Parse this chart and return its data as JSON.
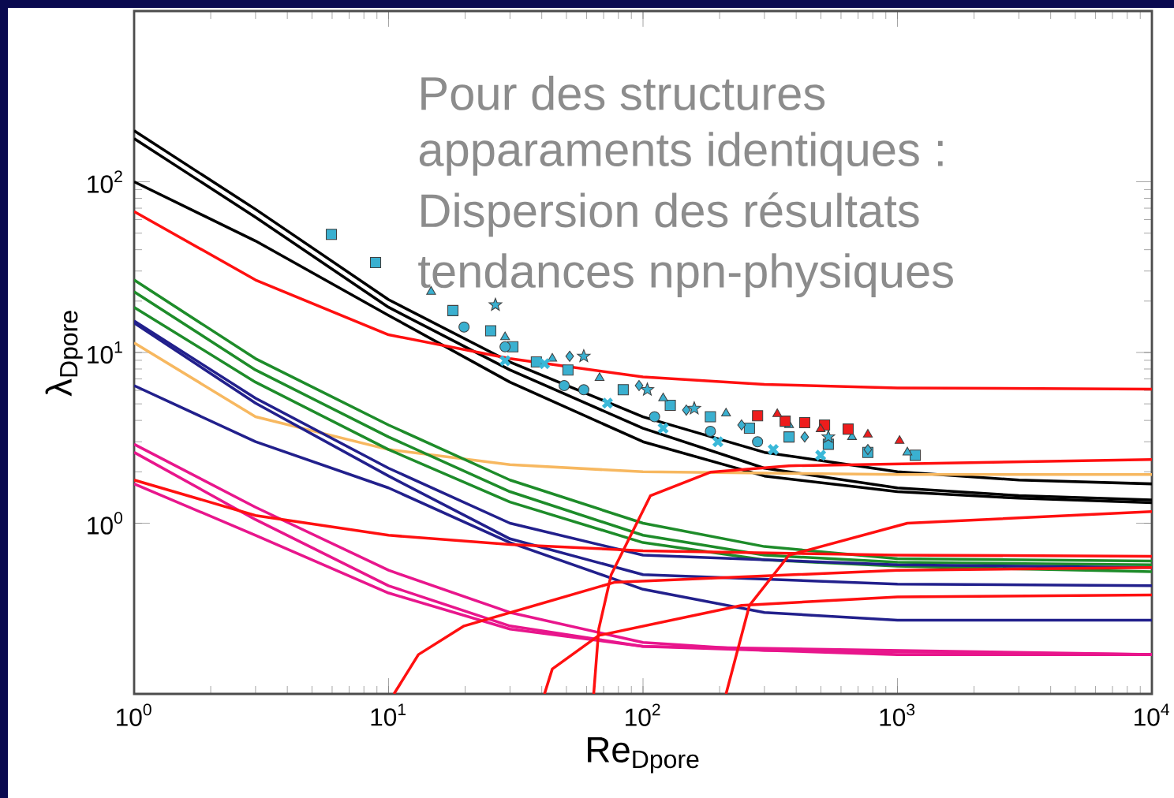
{
  "chart_data": {
    "type": "line",
    "log": "xy",
    "marker": "none",
    "xlabel": "Re$_{Dpore}$",
    "ylabel": "λ$_{Dpore}$",
    "xlim": [
      1,
      10000
    ],
    "ylim": [
      0.1,
      1000
    ],
    "xticks": [
      {
        "value": 1,
        "label": "10$^{0}$"
      },
      {
        "value": 10,
        "label": "10$^{1}$"
      },
      {
        "value": 100,
        "label": "10$^{2}$"
      },
      {
        "value": 1000,
        "label": "10$^{3}$"
      },
      {
        "value": 10000,
        "label": "10$^{4}$"
      }
    ],
    "yticks": [
      {
        "value": 1,
        "label": "10$^{0}$"
      },
      {
        "value": 10,
        "label": "10$^{1}$"
      },
      {
        "value": 100,
        "label": "10$^{2}$"
      }
    ],
    "annotations": [
      "Pour des structures",
      "apparaments identiques :",
      "Dispersion des résultats",
      "tendances npn-physiques"
    ],
    "series": [
      {
        "color": "#000000",
        "x": [
          1,
          3,
          10,
          30,
          100,
          300,
          1000,
          3000,
          10000
        ],
        "values": [
          199,
          69,
          20.4,
          8.8,
          4.2,
          2.6,
          2.0,
          1.79,
          1.7
        ]
      },
      {
        "color": "#000000",
        "x": [
          1,
          3,
          10,
          30,
          100,
          300,
          1000,
          3000,
          10000
        ],
        "values": [
          179,
          62,
          18.4,
          7.9,
          3.6,
          2.1,
          1.61,
          1.45,
          1.37
        ]
      },
      {
        "color": "#000000",
        "x": [
          1,
          3,
          10,
          30,
          100,
          300,
          1000,
          3000,
          10000
        ],
        "values": [
          100,
          45,
          16.5,
          6.7,
          3.0,
          1.89,
          1.53,
          1.4,
          1.32
        ]
      },
      {
        "color": "#ff1010",
        "x": [
          1,
          3,
          10,
          30,
          100,
          300,
          1000,
          10000
        ],
        "values": [
          67,
          26.6,
          12.7,
          9.2,
          7.2,
          6.5,
          6.2,
          6.1
        ]
      },
      {
        "color": "#f7b860",
        "x": [
          1,
          3,
          10,
          30,
          100,
          1000,
          10000
        ],
        "values": [
          11.4,
          4.2,
          2.7,
          2.2,
          2.0,
          1.93,
          1.93
        ]
      },
      {
        "color": "#1e8c2a",
        "x": [
          1,
          3,
          10,
          30,
          100,
          300,
          1000,
          10000
        ],
        "values": [
          26.6,
          9.2,
          3.76,
          1.79,
          1.0,
          0.73,
          0.62,
          0.6
        ]
      },
      {
        "color": "#1e8c2a",
        "x": [
          1,
          3,
          10,
          30,
          100,
          300,
          1000,
          10000
        ],
        "values": [
          22.7,
          7.9,
          3.2,
          1.53,
          0.85,
          0.65,
          0.59,
          0.57
        ]
      },
      {
        "color": "#1e8c2a",
        "x": [
          1,
          3,
          10,
          30,
          100,
          300,
          1000,
          10000
        ],
        "values": [
          18.4,
          6.7,
          2.7,
          1.33,
          0.77,
          0.61,
          0.56,
          0.52
        ]
      },
      {
        "color": "#22208c",
        "x": [
          1,
          3,
          10,
          30,
          100,
          1000,
          10000
        ],
        "values": [
          15.3,
          5.4,
          2.1,
          1.0,
          0.65,
          0.57,
          0.55
        ]
      },
      {
        "color": "#22208c",
        "x": [
          1,
          3,
          10,
          30,
          100,
          1000,
          10000
        ],
        "values": [
          14.9,
          5.05,
          1.89,
          0.81,
          0.5,
          0.44,
          0.43
        ]
      },
      {
        "color": "#22208c",
        "x": [
          1,
          3,
          10,
          30,
          100,
          300,
          1000,
          10000
        ],
        "values": [
          6.4,
          3.0,
          1.61,
          0.77,
          0.41,
          0.3,
          0.27,
          0.27
        ]
      },
      {
        "color": "#e8168c",
        "x": [
          1,
          3,
          10,
          30,
          100,
          300,
          1000,
          10000
        ],
        "values": [
          2.9,
          1.24,
          0.53,
          0.3,
          0.2,
          0.18,
          0.17,
          0.17
        ]
      },
      {
        "color": "#e8168c",
        "x": [
          1,
          3,
          10,
          30,
          100,
          300,
          10000
        ],
        "values": [
          2.6,
          1.05,
          0.43,
          0.25,
          0.19,
          0.18,
          0.17
        ]
      },
      {
        "color": "#e8168c",
        "x": [
          1,
          3,
          10,
          30,
          100,
          10000
        ],
        "values": [
          1.7,
          0.85,
          0.39,
          0.24,
          0.19,
          0.17
        ]
      },
      {
        "color": "#ff1010",
        "x": [
          1,
          3,
          10,
          30,
          100,
          1000,
          10000
        ],
        "values": [
          1.79,
          1.11,
          0.85,
          0.75,
          0.69,
          0.65,
          0.64
        ]
      },
      {
        "color": "#ff1010",
        "x": [
          10.5,
          13.1,
          19.8,
          77,
          1000,
          10000
        ],
        "values": [
          0.1,
          0.17,
          0.25,
          0.45,
          0.53,
          0.55
        ]
      },
      {
        "color": "#ff1010",
        "x": [
          41,
          44,
          67,
          244,
          1000,
          10000
        ],
        "values": [
          0.1,
          0.14,
          0.22,
          0.33,
          0.37,
          0.38
        ]
      },
      {
        "color": "#ff1010",
        "x": [
          64,
          67,
          75,
          107,
          184,
          375,
          10000
        ],
        "values": [
          0.1,
          0.24,
          0.5,
          1.45,
          1.99,
          2.17,
          2.36
        ]
      },
      {
        "color": "#ff1010",
        "x": [
          212,
          262,
          375,
          1094,
          10000
        ],
        "values": [
          0.1,
          0.33,
          0.65,
          1.0,
          1.17
        ]
      },
      {
        "type": "scatter",
        "marker": "square",
        "color": "#3ab0d0",
        "x": [
          5.96,
          8.89,
          17.9,
          25.2,
          30.8,
          38.1,
          50.7,
          83.6,
          128,
          184,
          262,
          375,
          535,
          765,
          1175
        ],
        "values": [
          49.2,
          33.6,
          17.6,
          13.4,
          10.8,
          8.8,
          7.9,
          6.05,
          4.9,
          4.2,
          3.6,
          3.2,
          2.9,
          2.6,
          2.5
        ]
      },
      {
        "type": "scatter",
        "marker": "circle",
        "color": "#3ab0d0",
        "x": [
          19.8,
          28.7,
          49.0,
          58.5,
          111,
          184,
          282
        ],
        "values": [
          14.1,
          10.8,
          6.4,
          6.05,
          4.2,
          3.45,
          3.0
        ]
      },
      {
        "type": "scatter",
        "marker": "triangle",
        "color": "#3ab0d0",
        "x": [
          14.7,
          28.7,
          44.0,
          67.5,
          120,
          212,
          375,
          663,
          1094
        ],
        "values": [
          22.7,
          12.3,
          9.2,
          7.1,
          5.4,
          4.4,
          3.76,
          3.2,
          2.6
        ]
      },
      {
        "type": "scatter",
        "marker": "star",
        "color": "#3ab0d0",
        "x": [
          26.3,
          58.5,
          104,
          159,
          535
        ],
        "values": [
          19.0,
          9.5,
          6.05,
          4.7,
          3.2
        ]
      },
      {
        "type": "scatter",
        "marker": "diamond",
        "color": "#3ab0d0",
        "x": [
          51.5,
          96.5,
          148,
          244,
          432,
          765
        ],
        "values": [
          9.5,
          6.4,
          4.6,
          3.76,
          3.2,
          2.7
        ]
      },
      {
        "type": "scatter",
        "marker": "cross",
        "color": "#3ab8d8",
        "x": [
          28.7,
          41,
          72.5,
          120,
          197,
          325,
          499
        ],
        "values": [
          8.95,
          8.6,
          5.05,
          3.6,
          3.0,
          2.7,
          2.5
        ]
      },
      {
        "type": "scatter",
        "marker": "square",
        "color": "#ee1c1c",
        "x": [
          282,
          362,
          432,
          517,
          640
        ],
        "values": [
          4.26,
          3.96,
          3.88,
          3.76,
          3.56
        ]
      },
      {
        "type": "scatter",
        "marker": "triangle",
        "color": "#ee1c1c",
        "x": [
          337,
          499,
          765,
          1019
        ],
        "values": [
          4.36,
          3.56,
          3.31,
          3.04
        ]
      }
    ]
  }
}
